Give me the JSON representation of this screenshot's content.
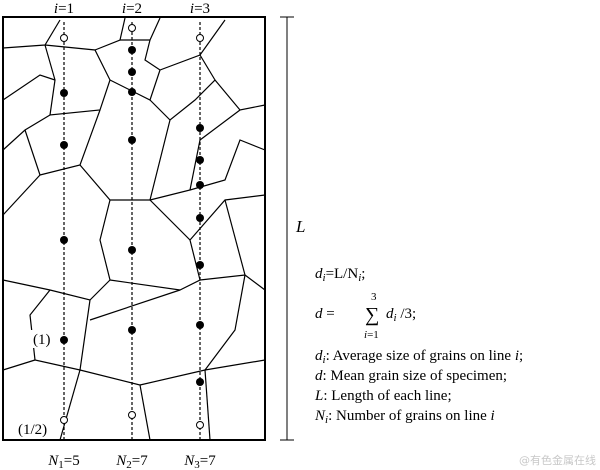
{
  "lines": [
    {
      "var": "i",
      "eq": "=1",
      "count": {
        "symbol": "N",
        "sub": "1",
        "eq": "=5"
      }
    },
    {
      "var": "i",
      "eq": "=2",
      "count": {
        "symbol": "N",
        "sub": "2",
        "eq": "=7"
      }
    },
    {
      "var": "i",
      "eq": "=3",
      "count": {
        "symbol": "N",
        "sub": "3",
        "eq": "=7"
      }
    }
  ],
  "length_label": "L",
  "counting_notes": [
    "(1)",
    "(1/2)"
  ],
  "formulas": [
    {
      "parts": [
        "d",
        "i",
        "=L/N",
        "i",
        ";"
      ]
    },
    {
      "parts": [
        "d",
        " = ",
        "3",
        "i",
        "=1",
        "d",
        "i",
        " /3;"
      ]
    }
  ],
  "definitions": [
    {
      "symbol": "d",
      "sub": "i",
      "text": ": Average size of grains on line ",
      "tail": "i",
      "end": ";"
    },
    {
      "symbol": "d",
      "sub": "",
      "text": ": Mean grain size of specimen;",
      "tail": "",
      "end": ""
    },
    {
      "symbol": "L",
      "sub": "",
      "text": ": Length of each line;",
      "tail": "",
      "end": ""
    },
    {
      "symbol": "N",
      "sub": "i",
      "text": ": Number of grains on line ",
      "tail": "i",
      "end": ""
    }
  ],
  "watermark": "@有色金属在线"
}
